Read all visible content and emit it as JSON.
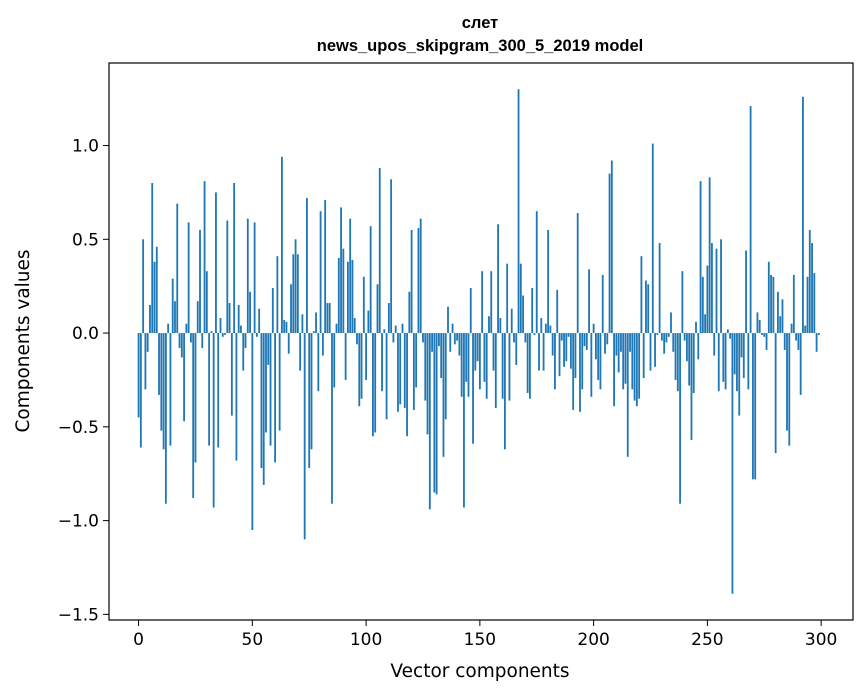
{
  "chart_data": {
    "type": "bar",
    "title": "слет",
    "subtitle": "news_upos_skipgram_300_5_2019 model",
    "xlabel": "Vector components",
    "ylabel": "Components values",
    "xlim": [
      -13,
      314
    ],
    "ylim": [
      -1.53,
      1.44
    ],
    "xticks": [
      0,
      50,
      100,
      150,
      200,
      250,
      300
    ],
    "xtick_labels": [
      "0",
      "50",
      "100",
      "150",
      "200",
      "250",
      "300"
    ],
    "yticks": [
      -1.5,
      -1.0,
      -0.5,
      0.0,
      0.5,
      1.0
    ],
    "ytick_labels": [
      "−1.5",
      "−1.0",
      "−0.5",
      "0.0",
      "0.5",
      "1.0"
    ],
    "bar_color": "#1f77b4",
    "values": [
      -0.45,
      -0.61,
      0.5,
      -0.3,
      -0.1,
      0.15,
      0.8,
      0.38,
      0.46,
      -0.33,
      -0.52,
      -0.62,
      -0.91,
      0.05,
      -0.6,
      0.29,
      0.17,
      0.69,
      -0.08,
      -0.13,
      -0.47,
      0.05,
      0.59,
      -0.05,
      -0.88,
      -0.69,
      0.17,
      0.55,
      -0.08,
      0.81,
      0.33,
      -0.6,
      0.01,
      -0.93,
      0.75,
      -0.61,
      0.08,
      -0.02,
      -0.01,
      0.6,
      0.16,
      -0.44,
      0.8,
      -0.68,
      0.15,
      0.04,
      -0.2,
      -0.08,
      0.61,
      0.22,
      -1.05,
      0.59,
      -0.02,
      0.13,
      -0.72,
      -0.81,
      -0.53,
      -0.17,
      -0.6,
      0.24,
      -0.69,
      0.41,
      -0.52,
      0.94,
      0.07,
      0.06,
      -0.11,
      0.26,
      0.42,
      0.5,
      0.42,
      -0.2,
      0.1,
      -1.1,
      0.72,
      -0.72,
      -0.62,
      0.01,
      0.11,
      -0.31,
      0.65,
      -0.12,
      0.71,
      0.16,
      0.16,
      -0.91,
      -0.29,
      0.05,
      0.4,
      0.67,
      0.45,
      -0.25,
      0.38,
      0.61,
      0.39,
      0.08,
      -0.06,
      -0.39,
      -0.35,
      0.3,
      -0.25,
      0.12,
      0.57,
      -0.55,
      -0.53,
      0.26,
      0.88,
      -0.31,
      0.02,
      -0.46,
      0.16,
      0.82,
      -0.05,
      0.04,
      -0.42,
      -0.38,
      0.05,
      -0.4,
      -0.55,
      0.22,
      0.55,
      -0.41,
      -0.29,
      0.56,
      0.61,
      -0.05,
      -0.36,
      -0.54,
      -0.94,
      -0.1,
      -0.85,
      -0.86,
      -0.07,
      -0.24,
      -0.66,
      -0.46,
      0.14,
      -0.1,
      0.05,
      -0.06,
      -0.04,
      -0.12,
      -0.34,
      -0.93,
      -0.26,
      -0.34,
      0.24,
      -0.59,
      -0.2,
      -0.15,
      -0.3,
      0.33,
      -0.26,
      -0.35,
      0.09,
      0.33,
      -0.2,
      -0.4,
      0.58,
      0.08,
      -0.35,
      -0.62,
      0.37,
      -0.36,
      0.13,
      -0.05,
      -0.17,
      1.3,
      0.37,
      0.2,
      -0.05,
      -0.32,
      -0.35,
      0.24,
      -0.01,
      0.65,
      -0.2,
      0.08,
      -0.2,
      0.05,
      0.55,
      0.04,
      -0.12,
      -0.3,
      0.23,
      -0.23,
      -0.04,
      -0.18,
      -0.15,
      -0.02,
      -0.19,
      -0.41,
      -0.24,
      0.64,
      -0.42,
      -0.3,
      -0.07,
      -0.09,
      0.34,
      -0.34,
      0.05,
      -0.14,
      -0.25,
      -0.3,
      0.31,
      -0.11,
      -0.06,
      0.85,
      0.92,
      -0.39,
      -0.12,
      -0.21,
      -0.1,
      -0.3,
      -0.27,
      -0.66,
      -0.1,
      -0.3,
      -0.36,
      -0.39,
      -0.35,
      0.41,
      -0.24,
      0.28,
      0.26,
      -0.2,
      1.01,
      -0.18,
      -0.01,
      0.48,
      -0.04,
      -0.11,
      -0.05,
      -0.02,
      0.11,
      -0.1,
      -0.25,
      -0.31,
      -0.91,
      0.33,
      -0.04,
      -0.15,
      -0.28,
      -0.57,
      -0.32,
      0.06,
      -0.14,
      0.81,
      0.3,
      0.1,
      0.36,
      0.83,
      0.48,
      -0.12,
      0.45,
      -0.31,
      0.5,
      -0.26,
      -0.3,
      0.02,
      -0.03,
      -1.39,
      -0.22,
      -0.31,
      -0.44,
      -0.13,
      -0.24,
      0.44,
      -0.3,
      1.21,
      -0.78,
      -0.78,
      0.11,
      0.07,
      -0.01,
      -0.02,
      -0.09,
      0.38,
      0.31,
      0.3,
      -0.64,
      0.22,
      0.09,
      0.18,
      -0.09,
      -0.52,
      -0.6,
      0.05,
      0.31,
      -0.04,
      -0.09,
      -0.33,
      1.26,
      0.04,
      0.3,
      0.55,
      0.48,
      0.32,
      -0.1,
      -0.01
    ]
  }
}
